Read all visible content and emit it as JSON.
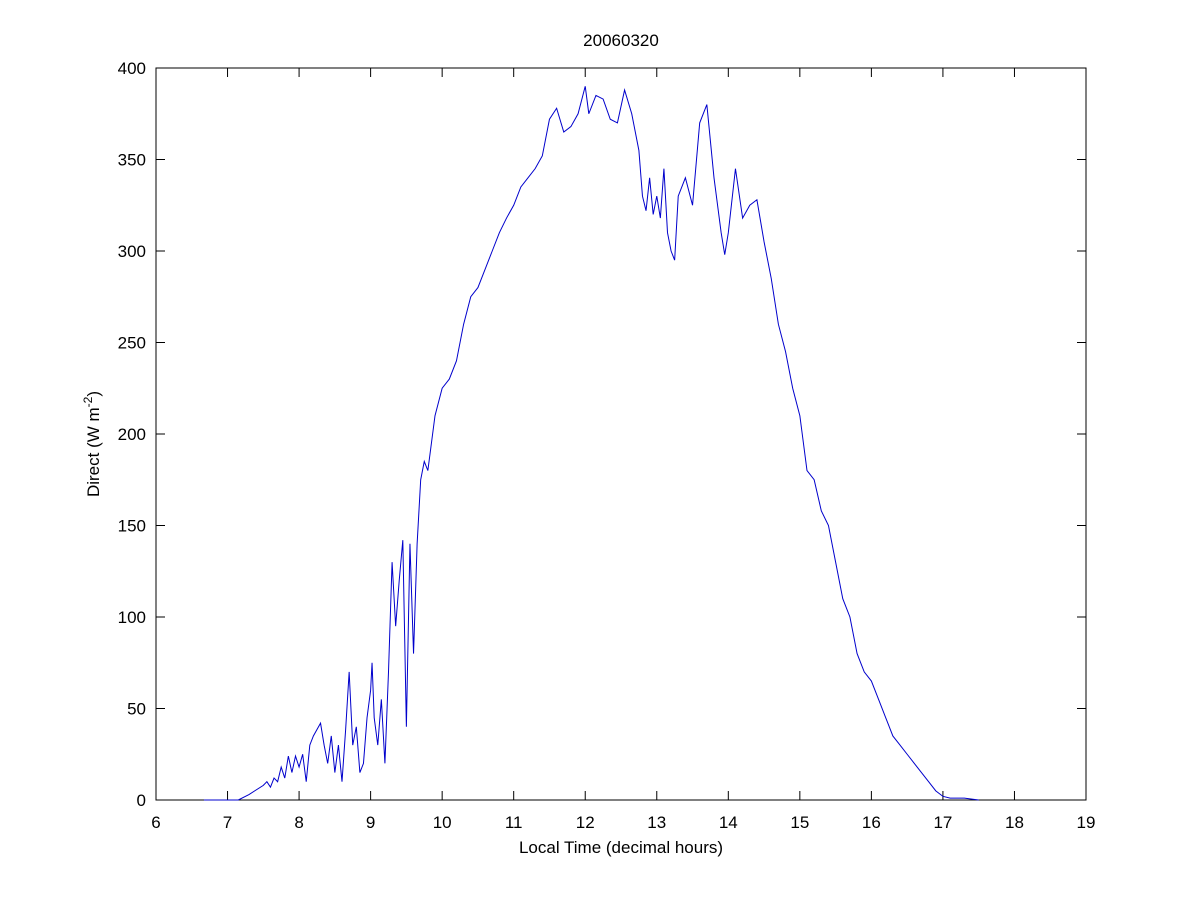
{
  "chart_data": {
    "type": "line",
    "title": "20060320",
    "xlabel": "Local Time (decimal hours)",
    "ylabel_parts": [
      "Direct (W m",
      "-2",
      ")"
    ],
    "xlim": [
      6,
      19
    ],
    "xticks": [
      6,
      7,
      8,
      9,
      10,
      11,
      12,
      13,
      14,
      15,
      16,
      17,
      18,
      19
    ],
    "ylim": [
      0,
      400
    ],
    "yticks": [
      0,
      50,
      100,
      150,
      200,
      250,
      300,
      350,
      400
    ],
    "grid": false,
    "series": [
      {
        "color": "#0000cc",
        "x": [
          6.67,
          7.0,
          7.15,
          7.3,
          7.5,
          7.55,
          7.6,
          7.65,
          7.7,
          7.75,
          7.8,
          7.85,
          7.9,
          7.95,
          8.0,
          8.05,
          8.1,
          8.15,
          8.2,
          8.3,
          8.35,
          8.4,
          8.45,
          8.5,
          8.55,
          8.6,
          8.65,
          8.7,
          8.75,
          8.8,
          8.85,
          8.9,
          8.95,
          9.0,
          9.02,
          9.05,
          9.1,
          9.15,
          9.2,
          9.25,
          9.3,
          9.35,
          9.4,
          9.45,
          9.5,
          9.55,
          9.6,
          9.65,
          9.7,
          9.75,
          9.8,
          9.85,
          9.9,
          10.0,
          10.1,
          10.2,
          10.3,
          10.4,
          10.5,
          10.6,
          10.7,
          10.8,
          10.9,
          11.0,
          11.1,
          11.2,
          11.3,
          11.4,
          11.5,
          11.6,
          11.7,
          11.8,
          11.9,
          12.0,
          12.05,
          12.15,
          12.25,
          12.35,
          12.45,
          12.55,
          12.65,
          12.75,
          12.8,
          12.85,
          12.9,
          12.95,
          13.0,
          13.05,
          13.1,
          13.15,
          13.2,
          13.25,
          13.3,
          13.4,
          13.5,
          13.6,
          13.7,
          13.75,
          13.8,
          13.9,
          13.95,
          14.0,
          14.1,
          14.2,
          14.3,
          14.4,
          14.5,
          14.6,
          14.7,
          14.8,
          14.9,
          15.0,
          15.1,
          15.2,
          15.3,
          15.4,
          15.5,
          15.6,
          15.7,
          15.8,
          15.9,
          16.0,
          16.1,
          16.2,
          16.3,
          16.4,
          16.5,
          16.6,
          16.7,
          16.8,
          16.9,
          17.0,
          17.1,
          17.3,
          17.5
        ],
        "values": [
          0,
          0,
          0,
          3,
          8,
          10,
          7,
          12,
          10,
          18,
          12,
          24,
          15,
          24,
          18,
          25,
          10,
          30,
          35,
          42,
          30,
          20,
          35,
          15,
          30,
          10,
          38,
          70,
          30,
          40,
          15,
          20,
          45,
          60,
          75,
          45,
          30,
          55,
          20,
          70,
          130,
          95,
          120,
          142,
          40,
          140,
          80,
          140,
          175,
          185,
          180,
          195,
          210,
          225,
          230,
          240,
          260,
          275,
          280,
          290,
          300,
          310,
          318,
          325,
          335,
          340,
          345,
          352,
          372,
          378,
          365,
          368,
          375,
          390,
          375,
          385,
          383,
          372,
          370,
          388,
          375,
          355,
          330,
          322,
          340,
          320,
          330,
          318,
          345,
          310,
          300,
          295,
          330,
          340,
          325,
          370,
          380,
          360,
          340,
          310,
          298,
          310,
          345,
          318,
          325,
          328,
          305,
          285,
          260,
          245,
          225,
          210,
          180,
          175,
          158,
          150,
          130,
          110,
          100,
          80,
          70,
          65,
          55,
          45,
          35,
          30,
          25,
          20,
          15,
          10,
          5,
          2,
          1,
          1,
          0
        ]
      }
    ]
  }
}
